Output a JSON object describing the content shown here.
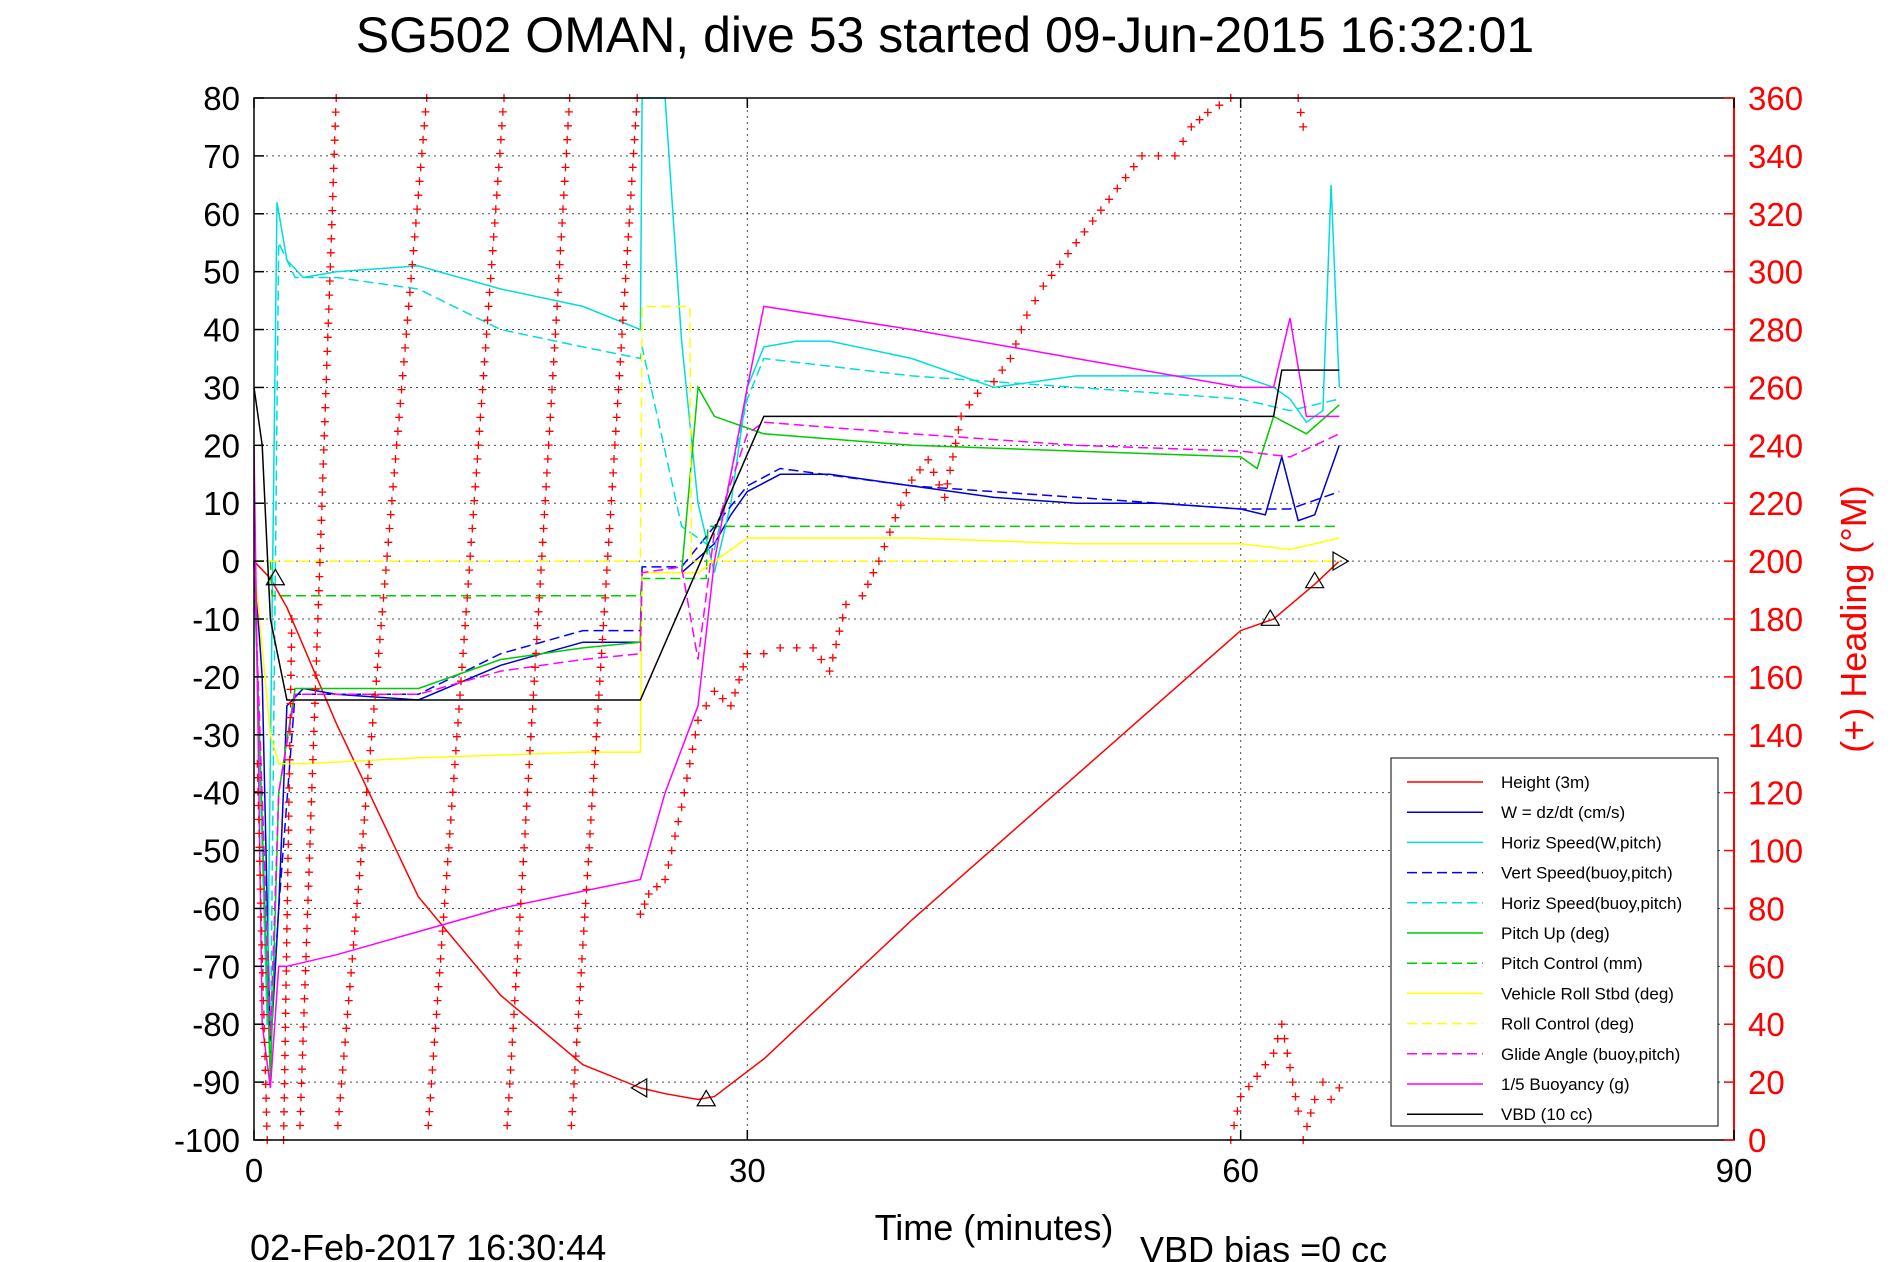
{
  "chart_data": {
    "type": "line",
    "title": "SG502 OMAN, dive 53 started 09-Jun-2015 16:32:01",
    "xlabel": "Time (minutes)",
    "ylabel": "",
    "ylabel_right": "(+) Heading (°M)",
    "xlim": [
      0,
      90
    ],
    "ylim": [
      -100,
      80
    ],
    "ylim_right": [
      0,
      360
    ],
    "x_ticks": [
      0,
      30,
      60,
      90
    ],
    "y_ticks": [
      -100,
      -90,
      -80,
      -70,
      -60,
      -50,
      -40,
      -30,
      -20,
      -10,
      0,
      10,
      20,
      30,
      40,
      50,
      60,
      70,
      80
    ],
    "y_ticks_right": [
      0,
      20,
      40,
      60,
      80,
      100,
      120,
      140,
      160,
      180,
      200,
      220,
      240,
      260,
      280,
      300,
      320,
      340,
      360
    ],
    "grid": true,
    "legend_position": "bottom-right",
    "footer_date": "02-Feb-2017 16:30:44",
    "footer_vbd": "VBD bias =0 cc",
    "series": [
      {
        "name": "Height (3m)",
        "color": "#ff0000",
        "style": "solid",
        "x": [
          0,
          1,
          2,
          5,
          10,
          15,
          20,
          23.5,
          25,
          27,
          28,
          31,
          40,
          50,
          60,
          62,
          64.5,
          66
        ],
        "y": [
          0,
          -3,
          -8,
          -28,
          -58,
          -75,
          -87,
          -91,
          -92,
          -93,
          -92.5,
          -86,
          -62,
          -37,
          -12,
          -10,
          -4,
          0
        ]
      },
      {
        "name": "W = dz/dt (cm/s)",
        "color": "#0000cc",
        "style": "solid",
        "x": [
          0,
          0.5,
          1.0,
          1.5,
          2.0,
          3,
          5,
          10,
          15,
          20,
          23.5,
          23.6,
          26,
          28,
          29,
          30,
          32,
          35,
          40,
          45,
          50,
          55,
          60,
          61.5,
          62.5,
          63.5,
          64.5,
          65.5,
          66
        ],
        "y": [
          0,
          -20,
          -85,
          -60,
          -25,
          -22,
          -23,
          -24,
          -18,
          -14,
          -14,
          -2,
          -2,
          3,
          8,
          12,
          15,
          15,
          13,
          11,
          10,
          10,
          9,
          8,
          18,
          7,
          8,
          16,
          20
        ]
      },
      {
        "name": "Horiz Speed(W,pitch)",
        "color": "#00dddd",
        "style": "solid",
        "x": [
          0,
          0.8,
          1.4,
          2.0,
          3,
          5,
          10,
          15,
          20,
          23.5,
          23.6,
          25,
          26,
          27,
          28,
          29,
          30,
          31,
          33,
          35,
          40,
          45,
          50,
          55,
          60,
          62,
          63,
          64,
          65,
          65.5,
          66
        ],
        "y": [
          0,
          -80,
          62,
          52,
          49,
          50,
          51,
          47,
          44,
          40,
          80,
          80,
          38,
          10,
          -2,
          10,
          30,
          37,
          38,
          38,
          35,
          30,
          32,
          32,
          32,
          30,
          28,
          24,
          26,
          65,
          30
        ]
      },
      {
        "name": "Vert Speed(buoy,pitch)",
        "color": "#0000ff",
        "style": "dashed",
        "x": [
          0,
          1,
          1.5,
          2.5,
          5,
          10,
          15,
          20,
          23.5,
          23.6,
          26,
          28,
          30,
          32,
          40,
          50,
          60,
          63,
          66
        ],
        "y": [
          0,
          -83,
          -60,
          -23,
          -23,
          -23,
          -16,
          -12,
          -12,
          -1,
          -1,
          6,
          13,
          16,
          13,
          11,
          9,
          9,
          12
        ]
      },
      {
        "name": "Horiz Speed(buoy,pitch)",
        "color": "#00dddd",
        "style": "dashed",
        "x": [
          0,
          1,
          1.5,
          2.5,
          5,
          10,
          15,
          20,
          23.5,
          23.6,
          26,
          28,
          30,
          31,
          40,
          50,
          60,
          63,
          66
        ],
        "y": [
          0,
          -85,
          55,
          49,
          49,
          47,
          40,
          37,
          35,
          37,
          6,
          2,
          28,
          35,
          32,
          30,
          28,
          26,
          28
        ]
      },
      {
        "name": "Pitch Up (deg)",
        "color": "#00cc00",
        "style": "solid",
        "x": [
          0,
          1,
          1.5,
          2.5,
          5,
          10,
          15,
          20,
          23.5,
          23.6,
          26,
          27,
          28,
          30,
          31,
          40,
          50,
          60,
          61,
          62,
          64,
          66
        ],
        "y": [
          0,
          -90,
          -40,
          -22,
          -22,
          -22,
          -17,
          -15,
          -14,
          -2,
          -2,
          30,
          25,
          23,
          22,
          20,
          19,
          18,
          16,
          25,
          22,
          27
        ]
      },
      {
        "name": "Pitch Control (mm)",
        "color": "#00cc00",
        "style": "dashed",
        "x": [
          0,
          1,
          1.1,
          23.5,
          23.6,
          27.5,
          27.6,
          66
        ],
        "y": [
          0,
          0,
          -6,
          -6,
          -3,
          -3,
          6,
          6
        ]
      },
      {
        "name": "Vehicle Roll Stbd (deg)",
        "color": "#ffff00",
        "style": "solid",
        "x": [
          0,
          1,
          1.5,
          3,
          10,
          20,
          23.5,
          23.6,
          27,
          30,
          40,
          50,
          60,
          63,
          66
        ],
        "y": [
          0,
          -30,
          -35,
          -35,
          -34,
          -33,
          -33,
          -2,
          -2,
          4,
          4,
          3,
          3,
          2,
          4
        ]
      },
      {
        "name": "Roll Control (deg)",
        "color": "#ffff00",
        "style": "dashed",
        "x": [
          0,
          23.5,
          23.6,
          26.5,
          26.6,
          66
        ],
        "y": [
          0,
          0,
          44,
          44,
          0,
          0
        ]
      },
      {
        "name": "Glide Angle (buoy,pitch)",
        "color": "#ff00ff",
        "style": "dashed",
        "x": [
          0,
          1,
          1.5,
          2.5,
          5,
          10,
          15,
          20,
          23.5,
          23.6,
          26,
          27,
          28,
          30,
          31,
          40,
          50,
          60,
          63,
          66
        ],
        "y": [
          0,
          -82,
          -40,
          -23,
          -23,
          -23,
          -19,
          -17,
          -16,
          -2,
          -1,
          -17,
          5,
          22,
          24,
          22,
          20,
          19,
          18,
          22
        ]
      },
      {
        "name": "1/5 Buoyancy (g)",
        "color": "#ff00ff",
        "style": "solid",
        "x": [
          0,
          0.5,
          1,
          1.5,
          2,
          5,
          10,
          15,
          20,
          23.5,
          25,
          27,
          28,
          30,
          31,
          40,
          50,
          60,
          62,
          63,
          64,
          66
        ],
        "y": [
          20,
          -80,
          -91,
          -70,
          -70,
          -68,
          -64,
          -60,
          -57,
          -55,
          -40,
          -25,
          0,
          30,
          44,
          40,
          35,
          30,
          30,
          42,
          25,
          25
        ]
      },
      {
        "name": "VBD (10 cc)",
        "color": "#000000",
        "style": "solid",
        "x": [
          0,
          0.5,
          1,
          2,
          23.5,
          31,
          61,
          62,
          62.5,
          66
        ],
        "y": [
          30,
          20,
          -10,
          -24,
          -24,
          25,
          25,
          25,
          33,
          33
        ]
      }
    ],
    "heading": {
      "name": "(+) Heading",
      "color": "#ff0000",
      "segments": [
        {
          "x": [
            0.2,
            0.8
          ],
          "y": [
            130,
            0
          ]
        },
        {
          "x": [
            1.8,
            2.3
          ],
          "y": [
            0,
            180
          ]
        },
        {
          "x": [
            2.8,
            5.0
          ],
          "y": [
            5,
            360
          ]
        },
        {
          "x": [
            5.1,
            10.5
          ],
          "y": [
            5,
            360
          ]
        },
        {
          "x": [
            10.6,
            15.2
          ],
          "y": [
            5,
            360
          ]
        },
        {
          "x": [
            15.4,
            19.2
          ],
          "y": [
            5,
            360
          ]
        },
        {
          "x": [
            19.3,
            23.3
          ],
          "y": [
            5,
            360
          ]
        },
        {
          "x": [
            23.5,
            24,
            25,
            26,
            27,
            28,
            29,
            30,
            31,
            32,
            34,
            35,
            36,
            37,
            38,
            39,
            40,
            41,
            42,
            43,
            44,
            45,
            46,
            47,
            48,
            50,
            52,
            54,
            56,
            57,
            58,
            59.4
          ],
          "y": [
            78,
            85,
            90,
            115,
            145,
            155,
            150,
            168,
            168,
            170,
            170,
            162,
            185,
            188,
            200,
            215,
            228,
            235,
            222,
            250,
            258,
            262,
            270,
            285,
            295,
            310,
            325,
            340,
            340,
            350,
            355,
            360
          ]
        },
        {
          "x": [
            59.4,
            60,
            61,
            62,
            62.5,
            63,
            63.5
          ],
          "y": [
            0,
            15,
            22,
            30,
            40,
            25,
            10
          ]
        },
        {
          "x": [
            63.5,
            63.8
          ],
          "y": [
            360,
            350
          ]
        },
        {
          "x": [
            63.8,
            64.5,
            65,
            65.5,
            66
          ],
          "y": [
            0,
            14,
            20,
            14,
            18
          ]
        }
      ]
    },
    "markers": {
      "triangles_up": [
        {
          "x": 1.3,
          "y": -3
        },
        {
          "x": 27.5,
          "y": -93
        },
        {
          "x": 61.8,
          "y": -10
        },
        {
          "x": 64.5,
          "y": -3.5
        }
      ],
      "triangles_left": [
        {
          "x": 23.5,
          "y": -91
        }
      ],
      "triangles_right": [
        {
          "x": 66,
          "y": 0
        }
      ]
    }
  }
}
